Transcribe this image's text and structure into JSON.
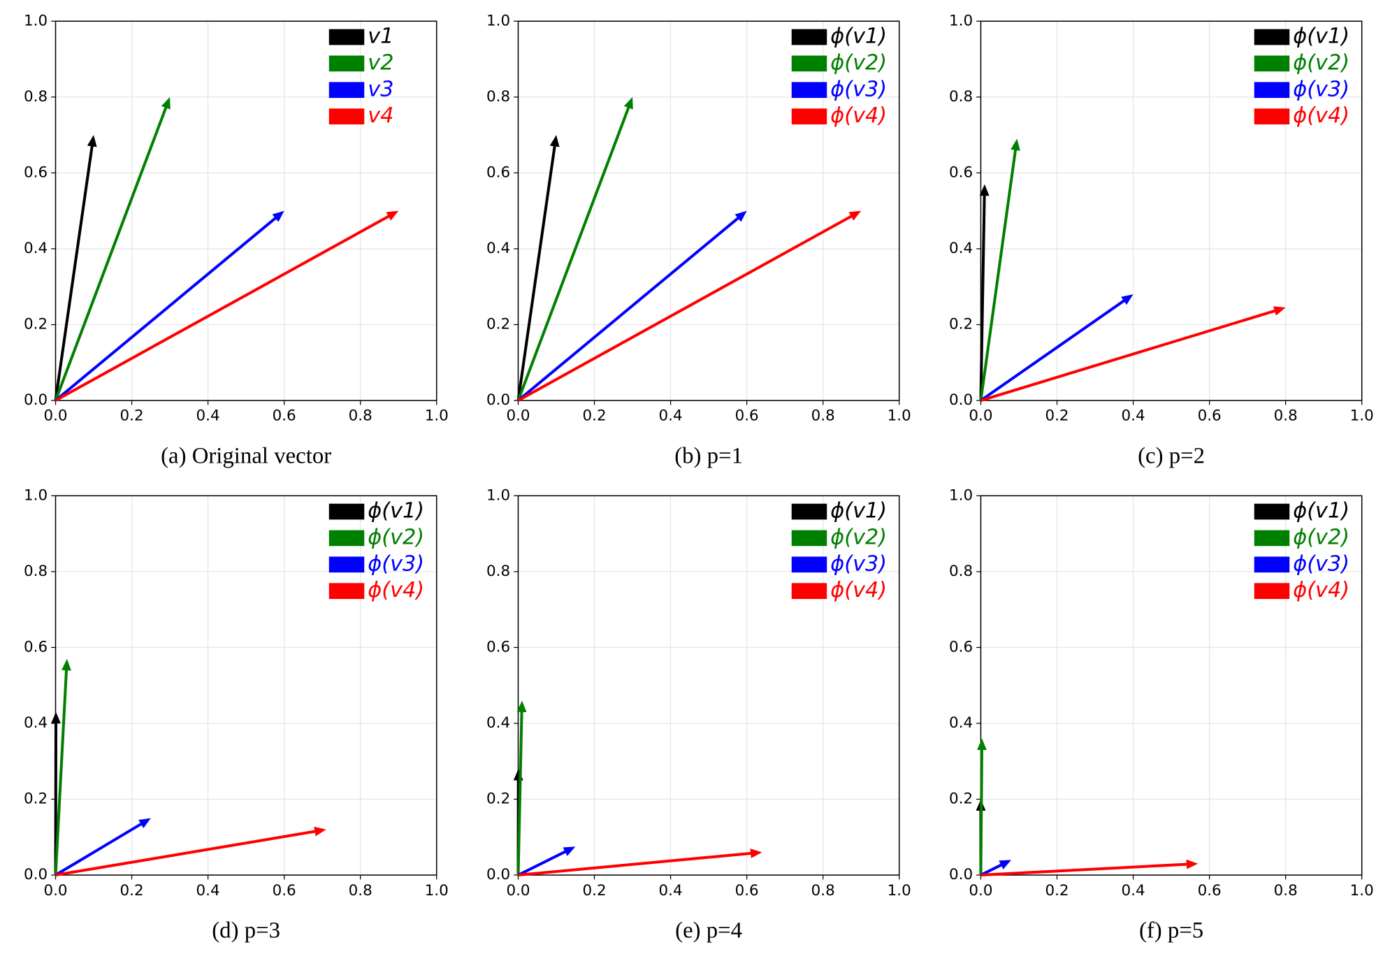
{
  "chart_data": [
    {
      "type": "quiver",
      "title": "(a) Original vector",
      "xlim": [
        0,
        1
      ],
      "ylim": [
        0,
        1
      ],
      "xticks": [
        {
          "value": 0,
          "label": "0.0"
        },
        0.2,
        0.4,
        0.6,
        0.8,
        {
          "value": 1,
          "label": "1.0"
        }
      ],
      "yticks": [
        {
          "value": 0,
          "label": "0.0"
        },
        0.2,
        0.4,
        0.6,
        0.8,
        {
          "value": 1,
          "label": "1.0"
        }
      ],
      "grid": true,
      "legend": "upper right",
      "series": [
        {
          "name": "v1",
          "color": "#000000",
          "x": 0.1,
          "y": 0.7
        },
        {
          "name": "v2",
          "color": "#008000",
          "x": 0.3,
          "y": 0.8
        },
        {
          "name": "v3",
          "color": "#0000ff",
          "x": 0.6,
          "y": 0.5
        },
        {
          "name": "v4",
          "color": "#ff0000",
          "x": 0.9,
          "y": 0.5
        }
      ]
    },
    {
      "type": "quiver",
      "title": "(b) p=1",
      "xlim": [
        0,
        1
      ],
      "ylim": [
        0,
        1
      ],
      "xticks": [
        {
          "value": 0,
          "label": "0.0"
        },
        0.2,
        0.4,
        0.6,
        0.8,
        {
          "value": 1,
          "label": "1.0"
        }
      ],
      "yticks": [
        {
          "value": 0,
          "label": "0.0"
        },
        0.2,
        0.4,
        0.6,
        0.8,
        {
          "value": 1,
          "label": "1.0"
        }
      ],
      "grid": true,
      "legend": "upper right",
      "series": [
        {
          "name": "ϕ(v1)",
          "color": "#000000",
          "x": 0.1,
          "y": 0.7
        },
        {
          "name": "ϕ(v2)",
          "color": "#008000",
          "x": 0.3,
          "y": 0.8
        },
        {
          "name": "ϕ(v3)",
          "color": "#0000ff",
          "x": 0.6,
          "y": 0.5
        },
        {
          "name": "ϕ(v4)",
          "color": "#ff0000",
          "x": 0.9,
          "y": 0.5
        }
      ]
    },
    {
      "type": "quiver",
      "title": "(c) p=2",
      "xlim": [
        0,
        1
      ],
      "ylim": [
        0,
        1
      ],
      "xticks": [
        {
          "value": 0,
          "label": "0.0"
        },
        0.2,
        0.4,
        0.6,
        0.8,
        {
          "value": 1,
          "label": "1.0"
        }
      ],
      "yticks": [
        {
          "value": 0,
          "label": "0.0"
        },
        0.2,
        0.4,
        0.6,
        0.8,
        {
          "value": 1,
          "label": "1.0"
        }
      ],
      "grid": true,
      "legend": "upper right",
      "series": [
        {
          "name": "ϕ(v1)",
          "color": "#000000",
          "x": 0.01,
          "y": 0.57
        },
        {
          "name": "ϕ(v2)",
          "color": "#008000",
          "x": 0.095,
          "y": 0.69
        },
        {
          "name": "ϕ(v3)",
          "color": "#0000ff",
          "x": 0.4,
          "y": 0.28
        },
        {
          "name": "ϕ(v4)",
          "color": "#ff0000",
          "x": 0.8,
          "y": 0.245
        }
      ]
    },
    {
      "type": "quiver",
      "title": "(d) p=3",
      "xlim": [
        0,
        1
      ],
      "ylim": [
        0,
        1
      ],
      "xticks": [
        {
          "value": 0,
          "label": "0.0"
        },
        0.2,
        0.4,
        0.6,
        0.8,
        {
          "value": 1,
          "label": "1.0"
        }
      ],
      "yticks": [
        {
          "value": 0,
          "label": "0.0"
        },
        0.2,
        0.4,
        0.6,
        0.8,
        {
          "value": 1,
          "label": "1.0"
        }
      ],
      "grid": true,
      "legend": "upper right",
      "series": [
        {
          "name": "ϕ(v1)",
          "color": "#000000",
          "x": 0.001,
          "y": 0.43
        },
        {
          "name": "ϕ(v2)",
          "color": "#008000",
          "x": 0.03,
          "y": 0.57
        },
        {
          "name": "ϕ(v3)",
          "color": "#0000ff",
          "x": 0.25,
          "y": 0.15
        },
        {
          "name": "ϕ(v4)",
          "color": "#ff0000",
          "x": 0.71,
          "y": 0.12
        }
      ]
    },
    {
      "type": "quiver",
      "title": "(e) p=4",
      "xlim": [
        0,
        1
      ],
      "ylim": [
        0,
        1
      ],
      "xticks": [
        {
          "value": 0,
          "label": "0.0"
        },
        0.2,
        0.4,
        0.6,
        0.8,
        {
          "value": 1,
          "label": "1.0"
        }
      ],
      "yticks": [
        {
          "value": 0,
          "label": "0.0"
        },
        0.2,
        0.4,
        0.6,
        0.8,
        {
          "value": 1,
          "label": "1.0"
        }
      ],
      "grid": true,
      "legend": "upper right",
      "series": [
        {
          "name": "ϕ(v1)",
          "color": "#000000",
          "x": 0.0005,
          "y": 0.28
        },
        {
          "name": "ϕ(v2)",
          "color": "#008000",
          "x": 0.01,
          "y": 0.46
        },
        {
          "name": "ϕ(v3)",
          "color": "#0000ff",
          "x": 0.15,
          "y": 0.075
        },
        {
          "name": "ϕ(v4)",
          "color": "#ff0000",
          "x": 0.64,
          "y": 0.06
        }
      ]
    },
    {
      "type": "quiver",
      "title": "(f) p=5",
      "xlim": [
        0,
        1
      ],
      "ylim": [
        0,
        1
      ],
      "xticks": [
        {
          "value": 0,
          "label": "0.0"
        },
        0.2,
        0.4,
        0.6,
        0.8,
        {
          "value": 1,
          "label": "1.0"
        }
      ],
      "yticks": [
        {
          "value": 0,
          "label": "0.0"
        },
        0.2,
        0.4,
        0.6,
        0.8,
        {
          "value": 1,
          "label": "1.0"
        }
      ],
      "grid": true,
      "legend": "upper right",
      "series": [
        {
          "name": "ϕ(v1)",
          "color": "#000000",
          "x": 0.0001,
          "y": 0.2
        },
        {
          "name": "ϕ(v2)",
          "color": "#008000",
          "x": 0.003,
          "y": 0.36
        },
        {
          "name": "ϕ(v3)",
          "color": "#0000ff",
          "x": 0.08,
          "y": 0.04
        },
        {
          "name": "ϕ(v4)",
          "color": "#ff0000",
          "x": 0.57,
          "y": 0.03
        }
      ]
    }
  ]
}
